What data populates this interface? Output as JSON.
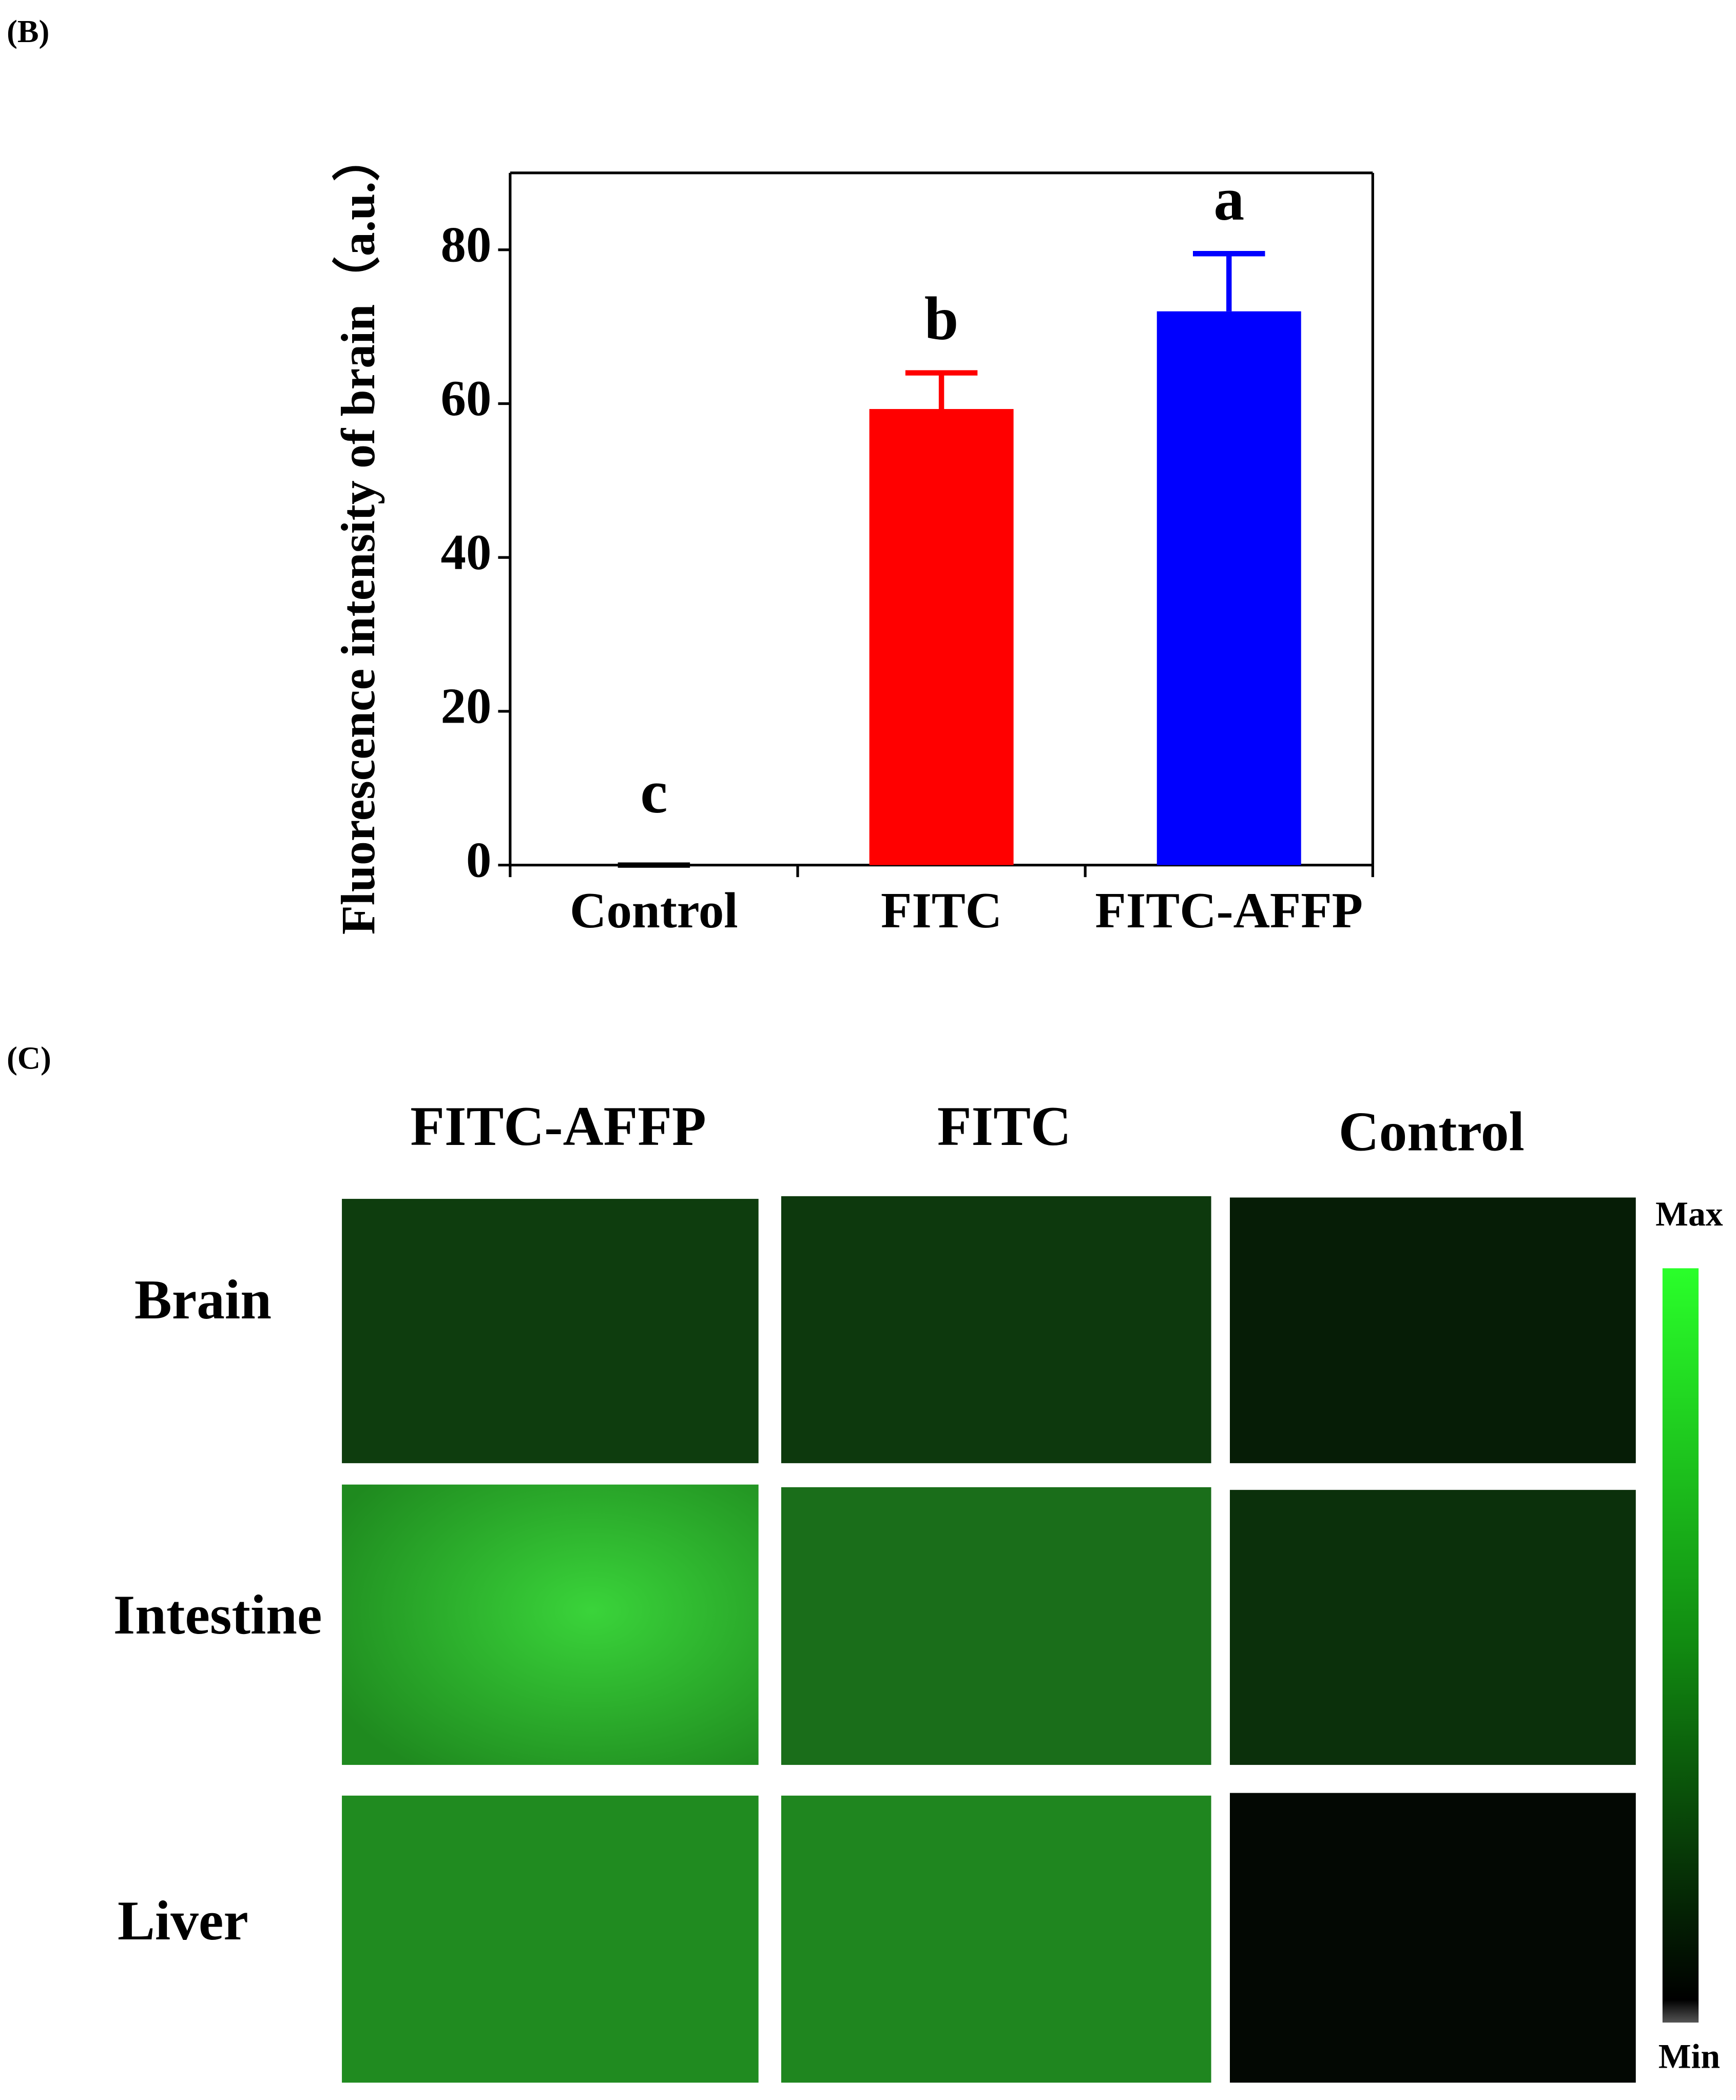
{
  "panel_b": {
    "label": "(B)"
  },
  "chart_data": {
    "type": "bar",
    "ylabel": "Fluorescence intensity of brain（a.u.）",
    "categories": [
      "Control",
      "FITC",
      "FITC-AFFP"
    ],
    "values": [
      0,
      59.3,
      72
    ],
    "errors": [
      0,
      4.7,
      7.5
    ],
    "colors": [
      "#000000",
      "#ff0000",
      "#0000ff"
    ],
    "annotations": [
      "c",
      "b",
      "a"
    ],
    "ylim": [
      0,
      90
    ],
    "yticks": [
      0,
      20,
      40,
      60,
      80
    ]
  },
  "panel_c": {
    "label": "(C)",
    "columns": [
      "FITC-AFFP",
      "FITC",
      "Control"
    ],
    "rows": [
      "Brain",
      "Intestine",
      "Liver"
    ],
    "scale_max": "Max",
    "scale_min": "Min"
  }
}
